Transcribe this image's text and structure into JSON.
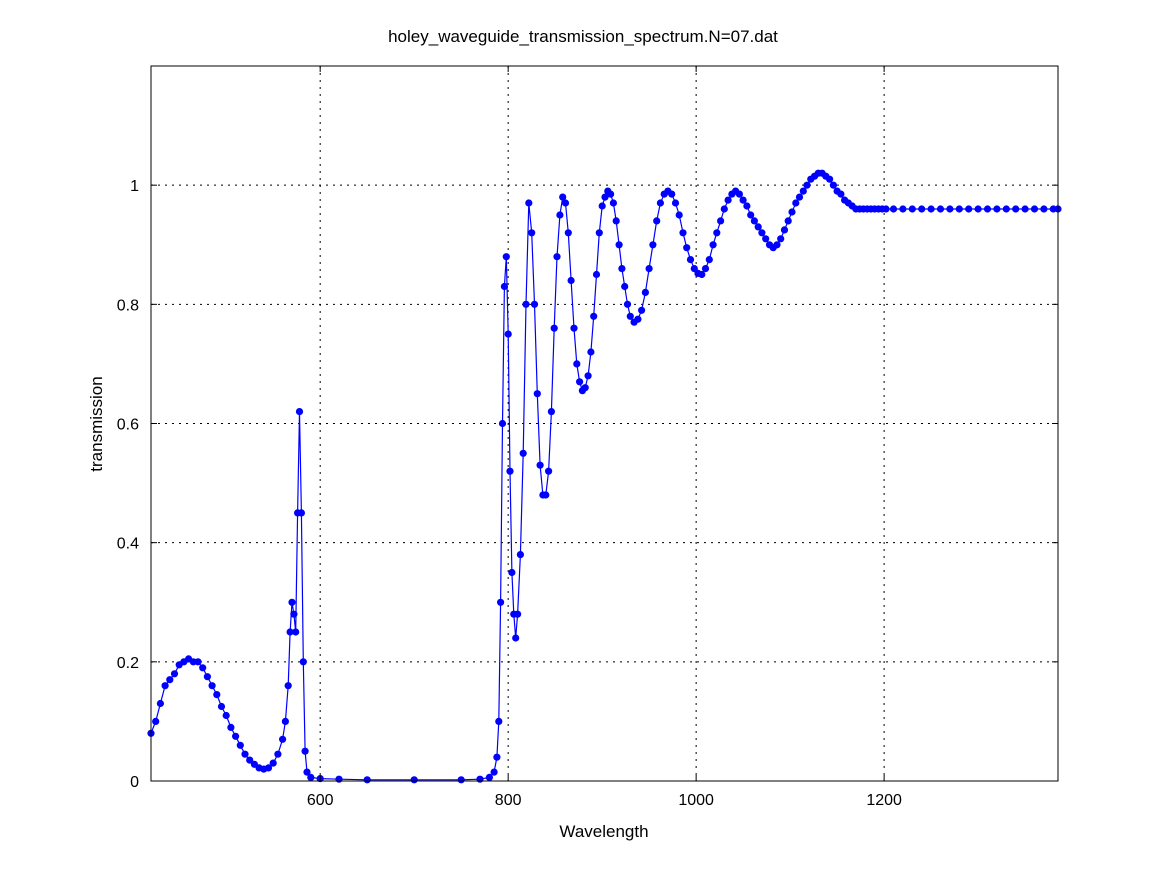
{
  "chart_data": {
    "type": "line",
    "title": "holey_waveguide_transmission_spectrum.N=07.dat",
    "xlabel": "Wavelength",
    "ylabel": "transmission",
    "xlim": [
      420,
      1385
    ],
    "ylim": [
      0,
      1.2
    ],
    "x_ticks": [
      "600",
      "800",
      "1000",
      "1200"
    ],
    "y_ticks": [
      "0",
      "0.2",
      "0.4",
      "0.6",
      "0.8",
      "1"
    ],
    "grid": true,
    "series_color": "#0000ff",
    "series": [
      {
        "points": [
          [
            420,
            0.08
          ],
          [
            425,
            0.1
          ],
          [
            430,
            0.13
          ],
          [
            435,
            0.16
          ],
          [
            440,
            0.17
          ],
          [
            445,
            0.18
          ],
          [
            450,
            0.195
          ],
          [
            455,
            0.2
          ],
          [
            460,
            0.205
          ],
          [
            465,
            0.2
          ],
          [
            470,
            0.2
          ],
          [
            475,
            0.19
          ],
          [
            480,
            0.175
          ],
          [
            485,
            0.16
          ],
          [
            490,
            0.145
          ],
          [
            495,
            0.125
          ],
          [
            500,
            0.11
          ],
          [
            505,
            0.09
          ],
          [
            510,
            0.075
          ],
          [
            515,
            0.06
          ],
          [
            520,
            0.045
          ],
          [
            525,
            0.035
          ],
          [
            530,
            0.028
          ],
          [
            535,
            0.022
          ],
          [
            540,
            0.02
          ],
          [
            545,
            0.022
          ],
          [
            550,
            0.03
          ],
          [
            555,
            0.045
          ],
          [
            560,
            0.07
          ],
          [
            563,
            0.1
          ],
          [
            566,
            0.16
          ],
          [
            568,
            0.25
          ],
          [
            570,
            0.3
          ],
          [
            572,
            0.28
          ],
          [
            574,
            0.25
          ],
          [
            576,
            0.45
          ],
          [
            578,
            0.62
          ],
          [
            580,
            0.45
          ],
          [
            582,
            0.2
          ],
          [
            584,
            0.05
          ],
          [
            586,
            0.015
          ],
          [
            590,
            0.006
          ],
          [
            600,
            0.004
          ],
          [
            620,
            0.003
          ],
          [
            650,
            0.002
          ],
          [
            700,
            0.002
          ],
          [
            750,
            0.002
          ],
          [
            770,
            0.003
          ],
          [
            780,
            0.006
          ],
          [
            785,
            0.015
          ],
          [
            788,
            0.04
          ],
          [
            790,
            0.1
          ],
          [
            792,
            0.3
          ],
          [
            794,
            0.6
          ],
          [
            796,
            0.83
          ],
          [
            798,
            0.88
          ],
          [
            800,
            0.75
          ],
          [
            802,
            0.52
          ],
          [
            804,
            0.35
          ],
          [
            806,
            0.28
          ],
          [
            808,
            0.24
          ],
          [
            810,
            0.28
          ],
          [
            813,
            0.38
          ],
          [
            816,
            0.55
          ],
          [
            819,
            0.8
          ],
          [
            822,
            0.97
          ],
          [
            825,
            0.92
          ],
          [
            828,
            0.8
          ],
          [
            831,
            0.65
          ],
          [
            834,
            0.53
          ],
          [
            837,
            0.48
          ],
          [
            840,
            0.48
          ],
          [
            843,
            0.52
          ],
          [
            846,
            0.62
          ],
          [
            849,
            0.76
          ],
          [
            852,
            0.88
          ],
          [
            855,
            0.95
          ],
          [
            858,
            0.98
          ],
          [
            861,
            0.97
          ],
          [
            864,
            0.92
          ],
          [
            867,
            0.84
          ],
          [
            870,
            0.76
          ],
          [
            873,
            0.7
          ],
          [
            876,
            0.67
          ],
          [
            879,
            0.655
          ],
          [
            882,
            0.66
          ],
          [
            885,
            0.68
          ],
          [
            888,
            0.72
          ],
          [
            891,
            0.78
          ],
          [
            894,
            0.85
          ],
          [
            897,
            0.92
          ],
          [
            900,
            0.965
          ],
          [
            903,
            0.98
          ],
          [
            906,
            0.99
          ],
          [
            909,
            0.985
          ],
          [
            912,
            0.97
          ],
          [
            915,
            0.94
          ],
          [
            918,
            0.9
          ],
          [
            921,
            0.86
          ],
          [
            924,
            0.83
          ],
          [
            927,
            0.8
          ],
          [
            930,
            0.78
          ],
          [
            934,
            0.77
          ],
          [
            938,
            0.775
          ],
          [
            942,
            0.79
          ],
          [
            946,
            0.82
          ],
          [
            950,
            0.86
          ],
          [
            954,
            0.9
          ],
          [
            958,
            0.94
          ],
          [
            962,
            0.97
          ],
          [
            966,
            0.985
          ],
          [
            970,
            0.99
          ],
          [
            974,
            0.985
          ],
          [
            978,
            0.97
          ],
          [
            982,
            0.95
          ],
          [
            986,
            0.92
          ],
          [
            990,
            0.895
          ],
          [
            994,
            0.875
          ],
          [
            998,
            0.86
          ],
          [
            1002,
            0.852
          ],
          [
            1006,
            0.85
          ],
          [
            1010,
            0.86
          ],
          [
            1014,
            0.875
          ],
          [
            1018,
            0.9
          ],
          [
            1022,
            0.92
          ],
          [
            1026,
            0.94
          ],
          [
            1030,
            0.96
          ],
          [
            1034,
            0.975
          ],
          [
            1038,
            0.985
          ],
          [
            1042,
            0.99
          ],
          [
            1046,
            0.985
          ],
          [
            1050,
            0.975
          ],
          [
            1054,
            0.965
          ],
          [
            1058,
            0.95
          ],
          [
            1062,
            0.94
          ],
          [
            1066,
            0.93
          ],
          [
            1070,
            0.92
          ],
          [
            1074,
            0.91
          ],
          [
            1078,
            0.9
          ],
          [
            1082,
            0.895
          ],
          [
            1086,
            0.9
          ],
          [
            1090,
            0.91
          ],
          [
            1094,
            0.925
          ],
          [
            1098,
            0.94
          ],
          [
            1102,
            0.955
          ],
          [
            1106,
            0.97
          ],
          [
            1110,
            0.98
          ],
          [
            1114,
            0.99
          ],
          [
            1118,
            1.0
          ],
          [
            1122,
            1.01
          ],
          [
            1126,
            1.015
          ],
          [
            1130,
            1.02
          ],
          [
            1134,
            1.02
          ],
          [
            1138,
            1.015
          ],
          [
            1142,
            1.01
          ],
          [
            1146,
            1.0
          ],
          [
            1150,
            0.99
          ],
          [
            1154,
            0.985
          ],
          [
            1158,
            0.975
          ],
          [
            1162,
            0.97
          ],
          [
            1166,
            0.965
          ],
          [
            1170,
            0.96
          ],
          [
            1174,
            0.96
          ],
          [
            1178,
            0.96
          ],
          [
            1182,
            0.96
          ],
          [
            1186,
            0.96
          ],
          [
            1190,
            0.96
          ],
          [
            1194,
            0.96
          ],
          [
            1198,
            0.96
          ],
          [
            1202,
            0.96
          ],
          [
            1210,
            0.96
          ],
          [
            1220,
            0.96
          ],
          [
            1230,
            0.96
          ],
          [
            1240,
            0.96
          ],
          [
            1250,
            0.96
          ],
          [
            1260,
            0.96
          ],
          [
            1270,
            0.96
          ],
          [
            1280,
            0.96
          ],
          [
            1290,
            0.96
          ],
          [
            1300,
            0.96
          ],
          [
            1310,
            0.96
          ],
          [
            1320,
            0.96
          ],
          [
            1330,
            0.96
          ],
          [
            1340,
            0.96
          ],
          [
            1350,
            0.96
          ],
          [
            1360,
            0.96
          ],
          [
            1370,
            0.96
          ],
          [
            1380,
            0.96
          ],
          [
            1385,
            0.96
          ]
        ]
      }
    ]
  }
}
